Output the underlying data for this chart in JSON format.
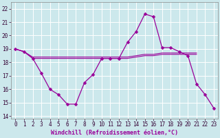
{
  "xlabel": "Windchill (Refroidissement éolien,°C)",
  "x": [
    0,
    1,
    2,
    3,
    4,
    5,
    6,
    7,
    8,
    9,
    10,
    11,
    12,
    13,
    14,
    15,
    16,
    17,
    18,
    19,
    20,
    21,
    22,
    23
  ],
  "line1": [
    19.0,
    18.8,
    18.3,
    17.2,
    16.0,
    15.6,
    14.9,
    14.9,
    16.5,
    17.1,
    18.3,
    18.3,
    18.3,
    19.5,
    20.3,
    21.6,
    21.4,
    19.1,
    19.1,
    18.8,
    18.5,
    16.4,
    15.6,
    14.6
  ],
  "line2_x": [
    0,
    1,
    2,
    3,
    4,
    5,
    6,
    7,
    8,
    9,
    10,
    11,
    12,
    13,
    14,
    15,
    16,
    17,
    18,
    19,
    20,
    21
  ],
  "line2_y": [
    19.0,
    18.8,
    18.4,
    18.4,
    18.4,
    18.4,
    18.4,
    18.4,
    18.4,
    18.4,
    18.4,
    18.4,
    18.4,
    18.4,
    18.5,
    18.6,
    18.6,
    18.7,
    18.7,
    18.7,
    18.7,
    18.7
  ],
  "line3_x": [
    0,
    1,
    2,
    3,
    4,
    5,
    6,
    7,
    8,
    9,
    10,
    11,
    12,
    13,
    14,
    15,
    16,
    17,
    18,
    19,
    20,
    21
  ],
  "line3_y": [
    19.0,
    18.8,
    18.3,
    18.3,
    18.3,
    18.3,
    18.3,
    18.3,
    18.3,
    18.3,
    18.3,
    18.3,
    18.3,
    18.3,
    18.4,
    18.5,
    18.5,
    18.6,
    18.6,
    18.6,
    18.6,
    18.6
  ],
  "line_color": "#990099",
  "bg_color": "#cce8ec",
  "grid_color": "#ffffff",
  "ylim": [
    13.8,
    22.5
  ],
  "yticks": [
    14,
    15,
    16,
    17,
    18,
    19,
    20,
    21,
    22
  ],
  "xlim": [
    -0.5,
    23.5
  ],
  "tick_fontsize": 5.5,
  "xlabel_fontsize": 6.0
}
